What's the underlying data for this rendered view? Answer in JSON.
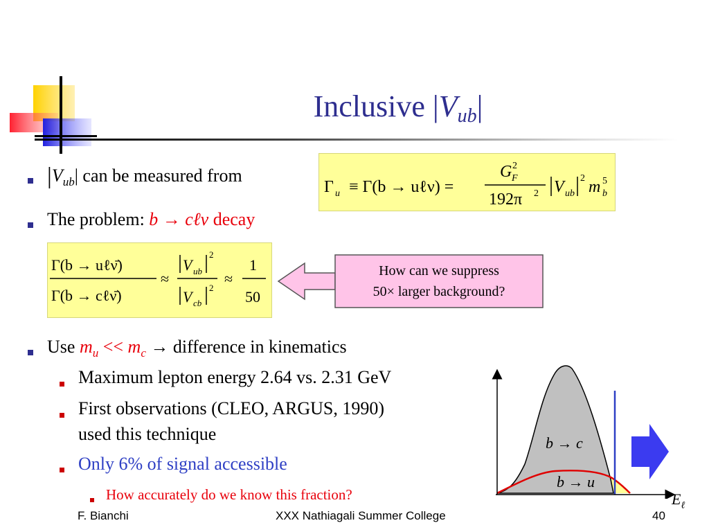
{
  "slide": {
    "title_prefix": "Inclusive |",
    "title_v": "V",
    "title_sub": "ub",
    "title_suffix": "|",
    "bullets": {
      "b1_v": "V",
      "b1_sub": "ub",
      "b1_text": "| can be measured from",
      "b2_prefix": "The problem: ",
      "b2_red": "b → cℓν",
      "b2_suffix": " decay",
      "b3_prefix": "Use ",
      "b3_mu": "m",
      "b3_mu_sub": "u",
      "b3_ll": " << ",
      "b3_mc": "m",
      "b3_mc_sub": "c",
      "b3_suffix": " → difference in kinematics",
      "sub1": "Maximum lepton energy 2.64 vs. 2.31 GeV",
      "sub2_line1": "First observations (CLEO, ARGUS, 1990)",
      "sub2_line2": "used this technique",
      "sub3": "Only 6% of signal accessible",
      "subsub1": "How accurately do we know this fraction?"
    },
    "formula1": {
      "gamma_u": "Γ",
      "u": "u",
      "equiv": "≡ Γ(b → uℓν) =",
      "numer": "G",
      "numer_sub": "F",
      "numer_sup": "2",
      "denom": "192π",
      "denom_sup": "2",
      "rhs_v": "V",
      "rhs_sub": "ub",
      "rhs_sup": "2",
      "rhs_m": "m",
      "rhs_m_sub": "b",
      "rhs_m_sup": "5"
    },
    "formula2": {
      "top": "Γ(b → uℓν̄)",
      "bottom": "Γ(b → cℓν̄)",
      "approx": "≈",
      "v_top": "V",
      "v_top_sub": "ub",
      "v_bot": "V",
      "v_bot_sub": "cb",
      "sup": "2",
      "one": "1",
      "fifty": "50"
    },
    "callout": {
      "line1": "How can we suppress",
      "line2": "50× larger background?"
    },
    "plot": {
      "label_bc": "b → c",
      "label_bu": "b → u",
      "axis_label": "E",
      "axis_sub": "ℓ"
    },
    "footer": {
      "left": "F. Bianchi",
      "center": "XXX Nathiagali Summer College",
      "page": "40"
    }
  },
  "colors": {
    "title": "#2e2e8f",
    "highlight_red": "#e8000b",
    "accent_blue": "#2e3fc4",
    "formula_bg": "#ffff99",
    "callout_fill": "#ffc4e8",
    "arrow_fill": "#3b3bf0"
  }
}
